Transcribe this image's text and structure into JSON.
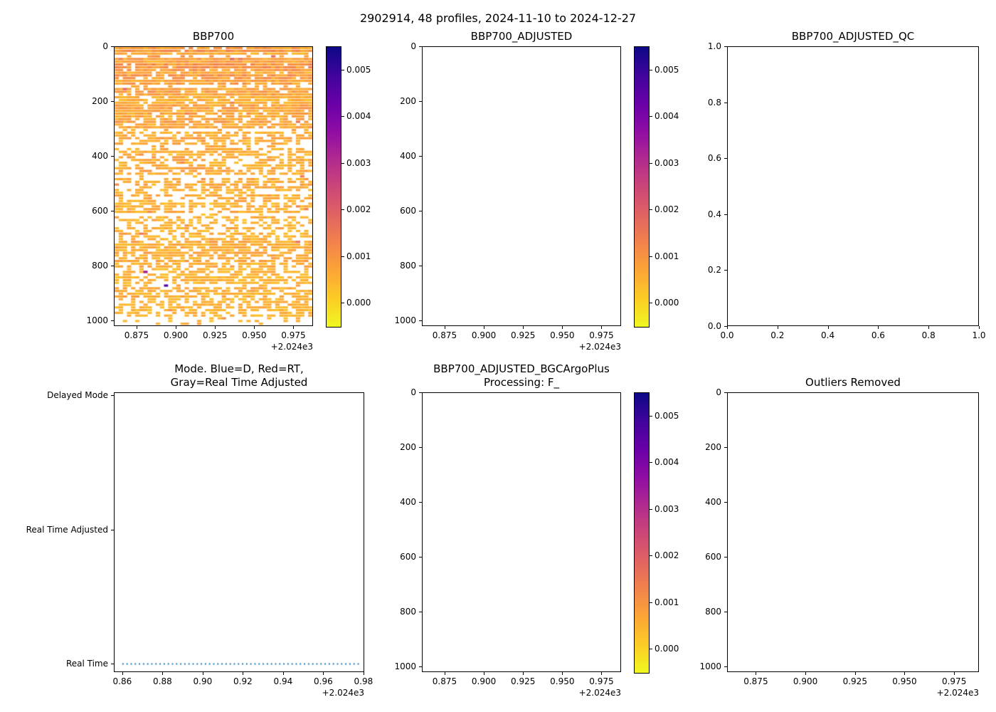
{
  "figure": {
    "title": "2902914, 48 profiles, 2024-11-10 to 2024-12-27"
  },
  "colors": {
    "axis": "#000000",
    "background": "#ffffff",
    "mode_line_blue": "#1f77b4",
    "colormap_name": "plasma_r",
    "plasma_stops": [
      "#0d0887",
      "#41049d",
      "#6a00a8",
      "#8f0da4",
      "#b12a90",
      "#cc4778",
      "#e16462",
      "#f2844b",
      "#fca636",
      "#fcce25",
      "#f0f921"
    ]
  },
  "chart_data": [
    {
      "id": "bbp700",
      "type": "heatmap",
      "title_lines": [
        "BBP700"
      ],
      "xlim": [
        2024.8605,
        2024.9875
      ],
      "ylim": [
        0,
        1020
      ],
      "y_inverted": true,
      "x_ticks": [
        2024.875,
        2024.9,
        2024.925,
        2024.95,
        2024.975
      ],
      "x_tick_labels": [
        "0.875",
        "0.900",
        "0.925",
        "0.950",
        "0.975"
      ],
      "x_offset_text": "+2.024e3",
      "y_ticks": [
        0,
        200,
        400,
        600,
        800,
        1000
      ],
      "y_tick_labels": [
        "0",
        "200",
        "400",
        "600",
        "800",
        "1000"
      ],
      "colorbar": {
        "vmin": -0.0005,
        "vmax": 0.0055,
        "ticks": [
          0,
          0.001,
          0.002,
          0.003,
          0.004,
          0.005
        ],
        "tick_labels": [
          "0.000",
          "0.001",
          "0.002",
          "0.003",
          "0.004",
          "0.005"
        ]
      },
      "has_data": true,
      "n_profiles": 48,
      "depth_bin_m": 10,
      "typical_value_range": [
        0.0002,
        0.0012
      ],
      "fill_bands": [
        {
          "depth": [
            0,
            140
          ],
          "fill": 0.93,
          "value_base": 0.00075
        },
        {
          "depth": [
            140,
            300
          ],
          "fill": 0.85,
          "value_base": 0.00065
        },
        {
          "depth": [
            300,
            470
          ],
          "fill": 0.6,
          "value_base": 0.00058
        },
        {
          "depth": [
            470,
            700
          ],
          "fill": 0.52,
          "value_base": 0.00052
        },
        {
          "depth": [
            700,
            790
          ],
          "fill": 0.72,
          "value_base": 0.00055
        },
        {
          "depth": [
            790,
            900
          ],
          "fill": 0.62,
          "value_base": 0.00052
        },
        {
          "depth": [
            900,
            995
          ],
          "fill": 0.55,
          "value_base": 0.0005
        },
        {
          "depth": [
            995,
            1020
          ],
          "fill": 0.12,
          "value_base": 0.00045
        }
      ],
      "outlier_cells": [
        {
          "profile": 7,
          "depth": 825,
          "value": 0.0035
        },
        {
          "profile": 12,
          "depth": 878,
          "value": 0.0048
        }
      ]
    },
    {
      "id": "bbp700_adjusted",
      "type": "heatmap",
      "title_lines": [
        "BBP700_ADJUSTED"
      ],
      "xlim": [
        2024.8605,
        2024.9875
      ],
      "ylim": [
        0,
        1020
      ],
      "y_inverted": true,
      "x_ticks": [
        2024.875,
        2024.9,
        2024.925,
        2024.95,
        2024.975
      ],
      "x_tick_labels": [
        "0.875",
        "0.900",
        "0.925",
        "0.950",
        "0.975"
      ],
      "x_offset_text": "+2.024e3",
      "y_ticks": [
        0,
        200,
        400,
        600,
        800,
        1000
      ],
      "y_tick_labels": [
        "0",
        "200",
        "400",
        "600",
        "800",
        "1000"
      ],
      "colorbar": {
        "vmin": -0.0005,
        "vmax": 0.0055,
        "ticks": [
          0,
          0.001,
          0.002,
          0.003,
          0.004,
          0.005
        ],
        "tick_labels": [
          "0.000",
          "0.001",
          "0.002",
          "0.003",
          "0.004",
          "0.005"
        ]
      },
      "has_data": false
    },
    {
      "id": "bbp700_adjusted_qc",
      "type": "empty_xy",
      "title_lines": [
        "BBP700_ADJUSTED_QC"
      ],
      "xlim": [
        0,
        1
      ],
      "ylim": [
        0,
        1
      ],
      "y_inverted": false,
      "x_ticks": [
        0,
        0.2,
        0.4,
        0.6,
        0.8,
        1
      ],
      "x_tick_labels": [
        "0.0",
        "0.2",
        "0.4",
        "0.6",
        "0.8",
        "1.0"
      ],
      "y_ticks": [
        0,
        0.2,
        0.4,
        0.6,
        0.8,
        1
      ],
      "y_tick_labels": [
        "0.0",
        "0.2",
        "0.4",
        "0.6",
        "0.8",
        "1.0"
      ],
      "has_data": false
    },
    {
      "id": "mode",
      "type": "category_line",
      "title_lines": [
        "Mode. Blue=D, Red=RT,",
        "Gray=Real Time Adjusted"
      ],
      "xlim": [
        2024.8558,
        2024.9804
      ],
      "x_ticks": [
        2024.86,
        2024.88,
        2024.9,
        2024.92,
        2024.94,
        2024.96,
        2024.98
      ],
      "x_tick_labels": [
        "0.86",
        "0.88",
        "0.90",
        "0.92",
        "0.94",
        "0.96",
        "0.98"
      ],
      "x_offset_text": "+2.024e3",
      "categories": [
        "Delayed Mode",
        "Real Time Adjusted",
        "Real Time"
      ],
      "series": [
        {
          "name": "mode-history",
          "category": "Real Time",
          "category_index": 2,
          "x_start": 2024.86,
          "x_end": 2024.978,
          "style": "dotted",
          "color": "#1f77b4"
        }
      ]
    },
    {
      "id": "bbp700_adjusted_bgcargoplus",
      "type": "heatmap",
      "title_lines": [
        "BBP700_ADJUSTED_BGCArgoPlus",
        "Processing: F_"
      ],
      "xlim": [
        2024.8605,
        2024.9875
      ],
      "ylim": [
        0,
        1020
      ],
      "y_inverted": true,
      "x_ticks": [
        2024.875,
        2024.9,
        2024.925,
        2024.95,
        2024.975
      ],
      "x_tick_labels": [
        "0.875",
        "0.900",
        "0.925",
        "0.950",
        "0.975"
      ],
      "x_offset_text": "+2.024e3",
      "y_ticks": [
        0,
        200,
        400,
        600,
        800,
        1000
      ],
      "y_tick_labels": [
        "0",
        "200",
        "400",
        "600",
        "800",
        "1000"
      ],
      "colorbar": {
        "vmin": -0.0005,
        "vmax": 0.0055,
        "ticks": [
          0,
          0.001,
          0.002,
          0.003,
          0.004,
          0.005
        ],
        "tick_labels": [
          "0.000",
          "0.001",
          "0.002",
          "0.003",
          "0.004",
          "0.005"
        ]
      },
      "has_data": false
    },
    {
      "id": "outliers_removed",
      "type": "heatmap",
      "title_lines": [
        "Outliers Removed"
      ],
      "xlim": [
        2024.8605,
        2024.9875
      ],
      "ylim": [
        0,
        1020
      ],
      "y_inverted": true,
      "x_ticks": [
        2024.875,
        2024.9,
        2024.925,
        2024.95,
        2024.975
      ],
      "x_tick_labels": [
        "0.875",
        "0.900",
        "0.925",
        "0.950",
        "0.975"
      ],
      "x_offset_text": "+2.024e3",
      "y_ticks": [
        0,
        200,
        400,
        600,
        800,
        1000
      ],
      "y_tick_labels": [
        "0",
        "200",
        "400",
        "600",
        "800",
        "1000"
      ],
      "has_data": false
    }
  ]
}
